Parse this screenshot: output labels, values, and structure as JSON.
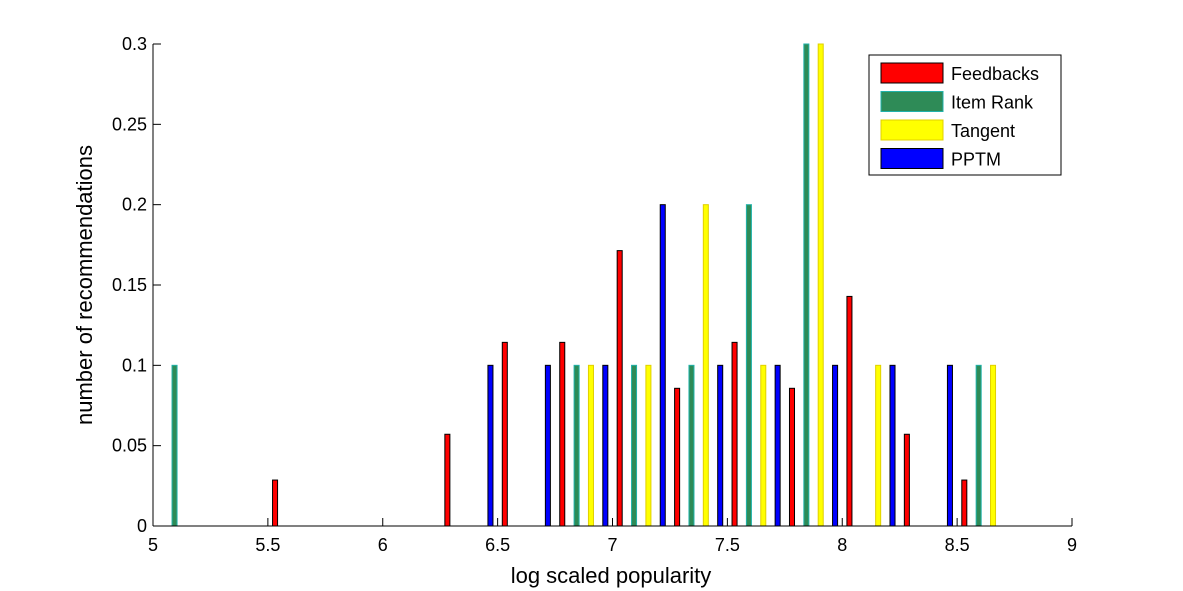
{
  "chart_data": {
    "type": "bar",
    "xlabel": "log scaled popularity",
    "ylabel": "number of recommendations",
    "xlim": [
      5,
      9
    ],
    "ylim": [
      0,
      0.3
    ],
    "xticks": [
      "5",
      "5.5",
      "6",
      "6.5",
      "7",
      "7.5",
      "8",
      "8.5",
      "9"
    ],
    "yticks": [
      "0",
      "0.05",
      "0.1",
      "0.15",
      "0.2",
      "0.25",
      "0.3"
    ],
    "legend_position": "top-right",
    "grid": false,
    "bin_centers": [
      5.125,
      5.375,
      5.625,
      5.875,
      6.125,
      6.375,
      6.625,
      6.875,
      7.125,
      7.375,
      7.625,
      7.875,
      8.125,
      8.375,
      8.625,
      8.875
    ],
    "series": [
      {
        "name": "Feedbacks",
        "color": "#ff0000",
        "values": [
          0,
          0,
          0.0286,
          0,
          0,
          0.0571,
          0.1143,
          0.1143,
          0.1714,
          0.0857,
          0.1143,
          0.0857,
          0.1429,
          0.0571,
          0.0286,
          0
        ]
      },
      {
        "name": "Item Rank",
        "color": "#2e8b57",
        "values": [
          0.1,
          0,
          0,
          0,
          0,
          0,
          0,
          0.1,
          0.1,
          0.1,
          0.2,
          0.3,
          0,
          0,
          0.1,
          0
        ]
      },
      {
        "name": "Tangent",
        "color": "#ffff00",
        "values": [
          0,
          0,
          0,
          0,
          0,
          0,
          0,
          0.1,
          0.1,
          0.2,
          0.1,
          0.3,
          0.1,
          0,
          0.1,
          0
        ]
      },
      {
        "name": "PPTM",
        "color": "#0000ff",
        "values": [
          0,
          0,
          0,
          0,
          0,
          0.1,
          0.1,
          0.1,
          0.2,
          0.1,
          0.1,
          0.1,
          0.1,
          0.1,
          0,
          0
        ]
      }
    ]
  }
}
